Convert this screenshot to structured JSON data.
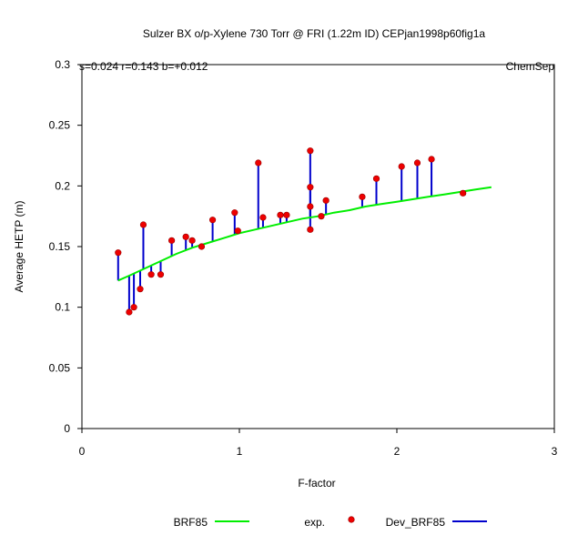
{
  "chart_data": {
    "type": "scatter",
    "title": "Sulzer BX o/p-Xylene 730 Torr @ FRI (1.22m ID) CEPjan1998p60fig1a",
    "stats_label": "s=0.024 r=0.143 b=+0.012",
    "corner_label": "ChemSep",
    "xlabel": "F-factor",
    "ylabel": "Average HETP (m)",
    "xlim": [
      0,
      3
    ],
    "ylim": [
      0,
      0.3
    ],
    "x_ticks": [
      0,
      1,
      2,
      3
    ],
    "x_tick_labels": [
      "0",
      "1",
      "2",
      "3"
    ],
    "y_ticks": [
      0,
      0.05,
      0.1,
      0.15,
      0.2,
      0.25,
      0.3
    ],
    "y_tick_labels": [
      "0",
      "0.05",
      "0.1",
      "0.15",
      "0.2",
      "0.25",
      "0.3"
    ],
    "grid": false,
    "legend": {
      "placement": "bottom",
      "entries": [
        {
          "name": "BRF85",
          "kind": "line",
          "color": "#00ee00"
        },
        {
          "name": "exp.",
          "kind": "marker",
          "color": "#ee0000"
        },
        {
          "name": "Dev_BRF85",
          "kind": "line",
          "color": "#0000cc"
        }
      ]
    },
    "series": [
      {
        "name": "BRF85",
        "kind": "line",
        "color": "#00ee00",
        "x": [
          0.23,
          0.3,
          0.4,
          0.5,
          0.6,
          0.7,
          0.8,
          0.9,
          1.0,
          1.1,
          1.2,
          1.3,
          1.4,
          1.5,
          1.6,
          1.7,
          1.8,
          1.9,
          2.0,
          2.1,
          2.2,
          2.3,
          2.4,
          2.5,
          2.6
        ],
        "y": [
          0.122,
          0.126,
          0.132,
          0.138,
          0.144,
          0.149,
          0.153,
          0.157,
          0.161,
          0.164,
          0.167,
          0.17,
          0.173,
          0.175,
          0.178,
          0.18,
          0.183,
          0.185,
          0.187,
          0.189,
          0.191,
          0.193,
          0.195,
          0.197,
          0.199
        ]
      },
      {
        "name": "exp.",
        "kind": "marker",
        "color": "#ee0000",
        "x": [
          0.23,
          0.3,
          0.33,
          0.37,
          0.39,
          0.44,
          0.5,
          0.57,
          0.66,
          0.7,
          0.76,
          0.83,
          0.97,
          0.99,
          1.12,
          1.15,
          1.26,
          1.3,
          1.45,
          1.45,
          1.45,
          1.45,
          1.52,
          1.55,
          1.78,
          1.87,
          2.03,
          2.13,
          2.22,
          2.42
        ],
        "y": [
          0.145,
          0.096,
          0.1,
          0.115,
          0.168,
          0.127,
          0.127,
          0.155,
          0.158,
          0.155,
          0.15,
          0.172,
          0.178,
          0.163,
          0.219,
          0.174,
          0.176,
          0.176,
          0.229,
          0.199,
          0.183,
          0.164,
          0.175,
          0.188,
          0.191,
          0.206,
          0.216,
          0.219,
          0.222,
          0.194
        ]
      },
      {
        "name": "Dev_BRF85",
        "kind": "deviation",
        "color": "#0000cc",
        "from": "exp.",
        "to": "BRF85"
      }
    ]
  }
}
